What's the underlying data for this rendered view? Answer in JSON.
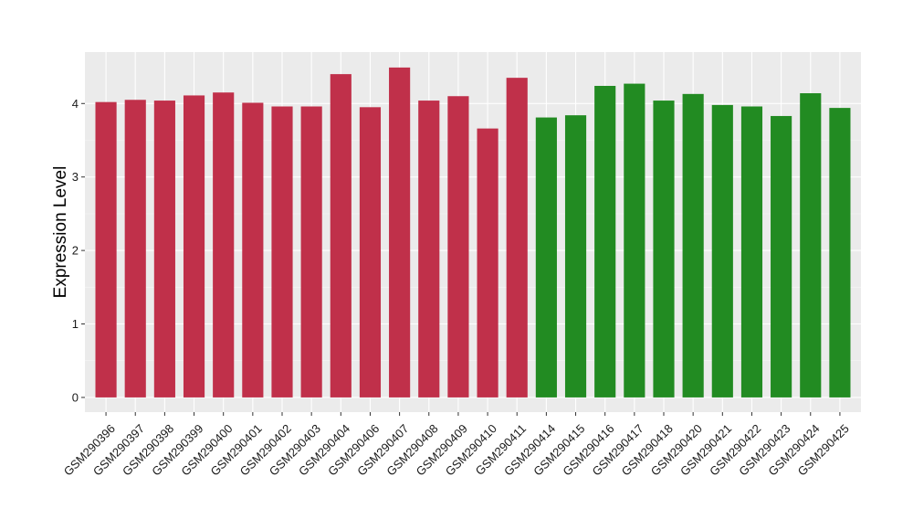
{
  "chart_data": {
    "type": "bar",
    "title": "",
    "xlabel": "",
    "ylabel": "Expression Level",
    "ylim": [
      -0.2,
      4.7
    ],
    "yticks": [
      0,
      1,
      2,
      3,
      4
    ],
    "grid": true,
    "colors": {
      "group1": "#c0304a",
      "group2": "#228b22",
      "panel_bg": "#ebebeb",
      "grid": "#ffffff"
    },
    "categories": [
      "GSM290396",
      "GSM290397",
      "GSM290398",
      "GSM290399",
      "GSM290400",
      "GSM290401",
      "GSM290402",
      "GSM290403",
      "GSM290404",
      "GSM290406",
      "GSM290407",
      "GSM290408",
      "GSM290409",
      "GSM290410",
      "GSM290411",
      "GSM290414",
      "GSM290415",
      "GSM290416",
      "GSM290417",
      "GSM290418",
      "GSM290420",
      "GSM290421",
      "GSM290422",
      "GSM290423",
      "GSM290424",
      "GSM290425"
    ],
    "values": [
      4.02,
      4.05,
      4.04,
      4.11,
      4.15,
      4.01,
      3.96,
      3.96,
      4.4,
      3.95,
      4.49,
      4.04,
      4.1,
      3.66,
      4.35,
      3.81,
      3.84,
      4.24,
      4.27,
      4.04,
      4.13,
      3.98,
      3.96,
      3.83,
      4.14,
      3.94
    ],
    "groups": [
      1,
      1,
      1,
      1,
      1,
      1,
      1,
      1,
      1,
      1,
      1,
      1,
      1,
      1,
      1,
      2,
      2,
      2,
      2,
      2,
      2,
      2,
      2,
      2,
      2,
      2
    ]
  }
}
